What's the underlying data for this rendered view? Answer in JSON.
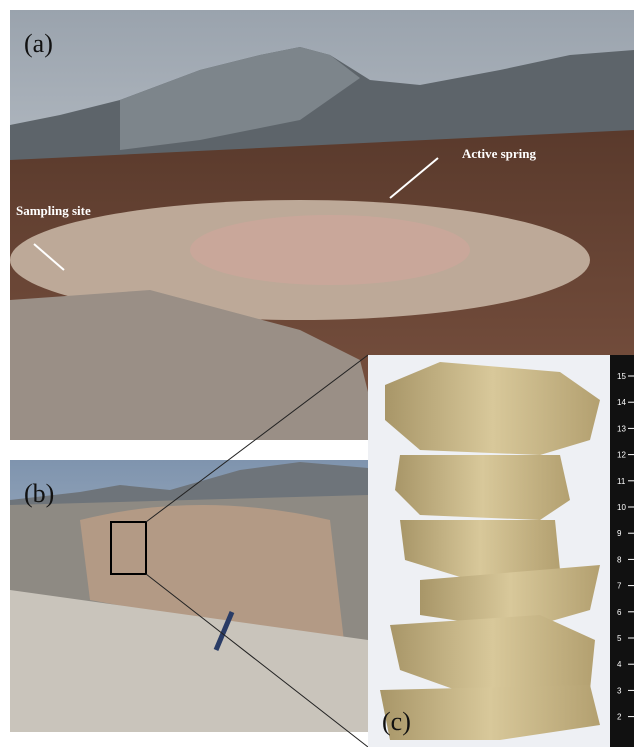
{
  "panels": {
    "a": {
      "label": "(a)",
      "annotations": [
        "Active spring",
        "Sampling site"
      ]
    },
    "b": {
      "label": "(b)"
    },
    "c": {
      "label": "(c)",
      "ruler_labels": [
        "15",
        "14",
        "13",
        "12",
        "11",
        "10",
        "9",
        "8",
        "7",
        "6",
        "5",
        "4",
        "3",
        "2"
      ]
    }
  }
}
